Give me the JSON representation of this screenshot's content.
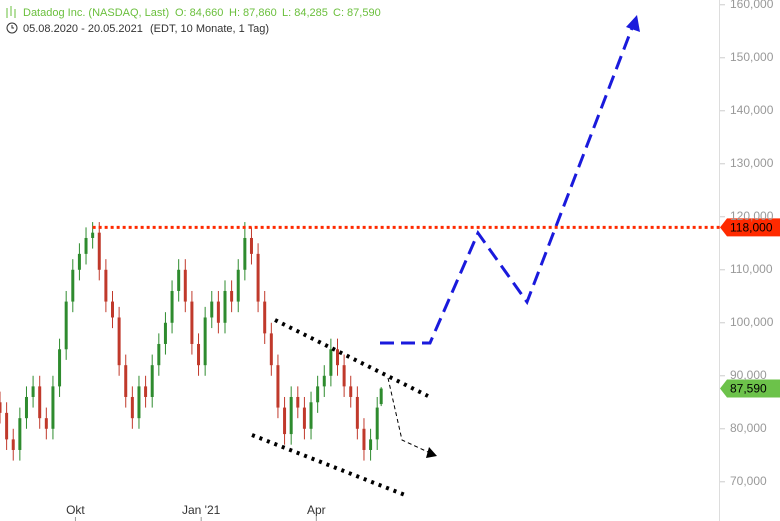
{
  "header": {
    "name": "Datadog Inc. (NASDAQ, Last)",
    "open": "O: 84,660",
    "high": "H: 87,860",
    "low": "L: 84,285",
    "close": "C: 87,590",
    "range": "05.08.2020 - 20.05.2021",
    "info": "(EDT, 10 Monate, 1 Tag)"
  },
  "chart_data": {
    "type": "ohlc",
    "x": [
      "2020-08-05",
      "2020-08-10",
      "2020-08-15",
      "2020-08-20",
      "2020-08-25",
      "2020-08-30",
      "2020-09-04",
      "2020-09-09",
      "2020-09-14",
      "2020-09-19",
      "2020-09-24",
      "2020-09-29",
      "2020-10-04",
      "2020-10-09",
      "2020-10-14",
      "2020-10-19",
      "2020-10-24",
      "2020-10-29",
      "2020-11-03",
      "2020-11-08",
      "2020-11-13",
      "2020-11-18",
      "2020-11-23",
      "2020-11-28",
      "2020-12-03",
      "2020-12-08",
      "2020-12-13",
      "2020-12-18",
      "2020-12-23",
      "2020-12-28",
      "2021-01-02",
      "2021-01-07",
      "2021-01-12",
      "2021-01-17",
      "2021-01-22",
      "2021-01-27",
      "2021-02-01",
      "2021-02-06",
      "2021-02-11",
      "2021-02-16",
      "2021-02-21",
      "2021-02-26",
      "2021-03-03",
      "2021-03-08",
      "2021-03-13",
      "2021-03-18",
      "2021-03-23",
      "2021-03-28",
      "2021-04-02",
      "2021-04-07",
      "2021-04-12",
      "2021-04-17",
      "2021-04-22",
      "2021-04-27",
      "2021-05-02",
      "2021-05-07",
      "2021-05-12",
      "2021-05-17",
      "2021-05-20"
    ],
    "open": [
      85000,
      83000,
      78000,
      76000,
      82000,
      86000,
      88000,
      82000,
      80000,
      88000,
      95000,
      104000,
      110000,
      113000,
      116000,
      117000,
      110000,
      104000,
      101000,
      92000,
      86000,
      82000,
      88000,
      86000,
      92000,
      96000,
      100000,
      106000,
      110000,
      104000,
      96000,
      92000,
      101000,
      104000,
      100000,
      106000,
      104000,
      110000,
      116000,
      113000,
      104000,
      98000,
      92000,
      84000,
      79000,
      86000,
      84000,
      80000,
      85000,
      88000,
      90000,
      95000,
      92000,
      88000,
      86000,
      80000,
      76000,
      78000,
      84660
    ],
    "high": [
      87000,
      85000,
      80000,
      84000,
      88000,
      90000,
      90000,
      84000,
      90000,
      97000,
      106000,
      112000,
      115000,
      118000,
      119000,
      119000,
      112000,
      106000,
      103000,
      94000,
      88000,
      90000,
      90000,
      94000,
      98000,
      102000,
      108000,
      112000,
      112000,
      106000,
      98000,
      103000,
      106000,
      106000,
      108000,
      108000,
      112000,
      119000,
      118000,
      115000,
      106000,
      100000,
      94000,
      86000,
      88000,
      88000,
      86000,
      87000,
      90000,
      92000,
      97000,
      97000,
      94000,
      90000,
      88000,
      82000,
      80000,
      86000,
      87860
    ],
    "low": [
      81000,
      76000,
      74000,
      74000,
      80000,
      84000,
      80000,
      78000,
      78000,
      86000,
      93000,
      102000,
      108000,
      111000,
      114000,
      108000,
      102000,
      99000,
      90000,
      84000,
      80000,
      80000,
      84000,
      84000,
      90000,
      94000,
      98000,
      104000,
      102000,
      94000,
      90000,
      90000,
      99000,
      98000,
      98000,
      102000,
      102000,
      108000,
      111000,
      102000,
      96000,
      90000,
      82000,
      77000,
      77000,
      82000,
      78000,
      78000,
      83000,
      86000,
      88000,
      90000,
      86000,
      84000,
      78000,
      74000,
      74000,
      76000,
      84285
    ],
    "close": [
      83000,
      78000,
      76000,
      82000,
      86000,
      88000,
      82000,
      80000,
      88000,
      95000,
      104000,
      110000,
      113000,
      116000,
      117000,
      110000,
      104000,
      101000,
      92000,
      86000,
      82000,
      88000,
      86000,
      92000,
      96000,
      100000,
      106000,
      110000,
      104000,
      96000,
      92000,
      101000,
      104000,
      100000,
      106000,
      104000,
      110000,
      116000,
      113000,
      104000,
      98000,
      92000,
      84000,
      79000,
      86000,
      84000,
      80000,
      85000,
      88000,
      90000,
      95000,
      92000,
      88000,
      86000,
      80000,
      76000,
      78000,
      84000,
      87590
    ],
    "up_color": "#2e8b2e",
    "down_color": "#c0392b",
    "xlim": [
      "2020-08-05",
      "2022-01-31"
    ],
    "xticks": [
      {
        "value": "2020-10-01",
        "label": "Okt"
      },
      {
        "value": "2021-01-04",
        "label": "Jan '21"
      },
      {
        "value": "2021-04-01",
        "label": "Apr"
      }
    ],
    "ylim": [
      62600,
      160900
    ],
    "yticks": [
      {
        "value": 70000,
        "label": "70,000"
      },
      {
        "value": 80000,
        "label": "80,000"
      },
      {
        "value": 90000,
        "label": "90,000"
      },
      {
        "value": 100000,
        "label": "100,000"
      },
      {
        "value": 110000,
        "label": "110,000"
      },
      {
        "value": 120000,
        "label": "120,000"
      },
      {
        "value": 130000,
        "label": "130,000"
      },
      {
        "value": 140000,
        "label": "140,000"
      },
      {
        "value": 150000,
        "label": "150,000"
      },
      {
        "value": 160000,
        "label": "160,000"
      }
    ],
    "reference_line": {
      "value": 118000,
      "label": "118,000",
      "color": "#ff2a00"
    },
    "last_price": {
      "value": 87590,
      "label": "87,590",
      "color": "#6cc24a"
    }
  }
}
